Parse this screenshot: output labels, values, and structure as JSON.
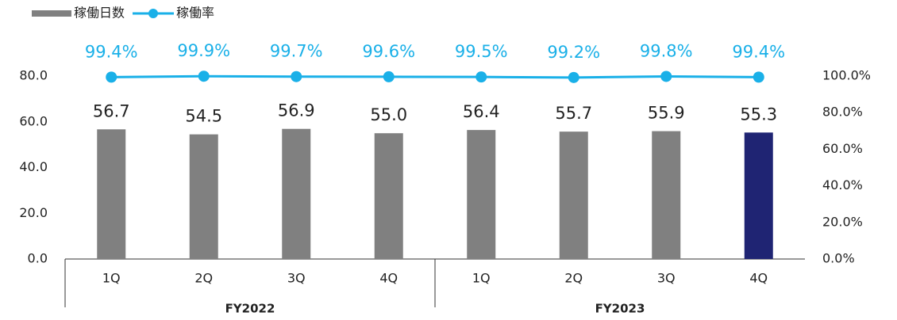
{
  "chart_data": {
    "type": "combo",
    "categories": [
      "1Q",
      "2Q",
      "3Q",
      "4Q",
      "1Q",
      "2Q",
      "3Q",
      "4Q"
    ],
    "groups": [
      {
        "name": "FY2022",
        "span": 4
      },
      {
        "name": "FY2023",
        "span": 4
      }
    ],
    "series": [
      {
        "name": "稼働日数",
        "type": "bar",
        "color": "#808080",
        "colors": [
          "#808080",
          "#808080",
          "#808080",
          "#808080",
          "#808080",
          "#808080",
          "#808080",
          "#1f2473"
        ],
        "values": [
          56.7,
          54.5,
          56.9,
          55.0,
          56.4,
          55.7,
          55.9,
          55.3
        ],
        "value_labels": [
          "56.7",
          "54.5",
          "56.9",
          "55.0",
          "56.4",
          "55.7",
          "55.9",
          "55.3"
        ]
      },
      {
        "name": "稼働率",
        "type": "line",
        "axis": "y2",
        "color": "#1ab0e8",
        "values": [
          99.4,
          99.9,
          99.7,
          99.6,
          99.5,
          99.2,
          99.8,
          99.4
        ],
        "value_labels": [
          "99.4%",
          "99.9%",
          "99.7%",
          "99.6%",
          "99.5%",
          "99.2%",
          "99.8%",
          "99.4%"
        ]
      }
    ],
    "ylim": [
      0,
      80
    ],
    "yticks": [
      {
        "value": 0,
        "label": "0.0"
      },
      {
        "value": 20,
        "label": "20.0"
      },
      {
        "value": 40,
        "label": "40.0"
      },
      {
        "value": 60,
        "label": "60.0"
      },
      {
        "value": 80,
        "label": "80.0"
      }
    ],
    "y2lim": [
      0,
      100
    ],
    "y2ticks": [
      {
        "value": 0,
        "label": "0.0%"
      },
      {
        "value": 20,
        "label": "20.0%"
      },
      {
        "value": 40,
        "label": "40.0%"
      },
      {
        "value": 60,
        "label": "60.0%"
      },
      {
        "value": 80,
        "label": "80.0%"
      },
      {
        "value": 100,
        "label": "100.0%"
      }
    ],
    "legend": "top-left"
  }
}
